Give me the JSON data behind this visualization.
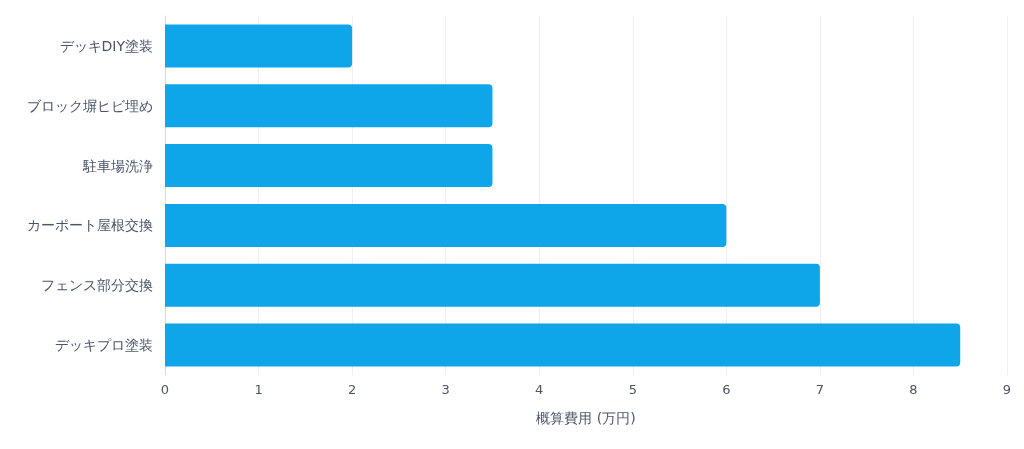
{
  "chart_data": {
    "type": "bar",
    "orientation": "horizontal",
    "xlabel": "概算費用 (万円)",
    "categories": [
      "デッキDIY塗装",
      "ブロック塀ヒビ埋め",
      "駐車場洗浄",
      "カーポート屋根交換",
      "フェンス部分交換",
      "デッキプロ塗装"
    ],
    "values": [
      2,
      3.5,
      3.5,
      6,
      7,
      8.5
    ],
    "color": "#0ea5e9",
    "xlim": [
      0,
      9
    ],
    "xticks": [
      0,
      1,
      2,
      3,
      4,
      5,
      6,
      7,
      8,
      9
    ],
    "grid": "x"
  }
}
